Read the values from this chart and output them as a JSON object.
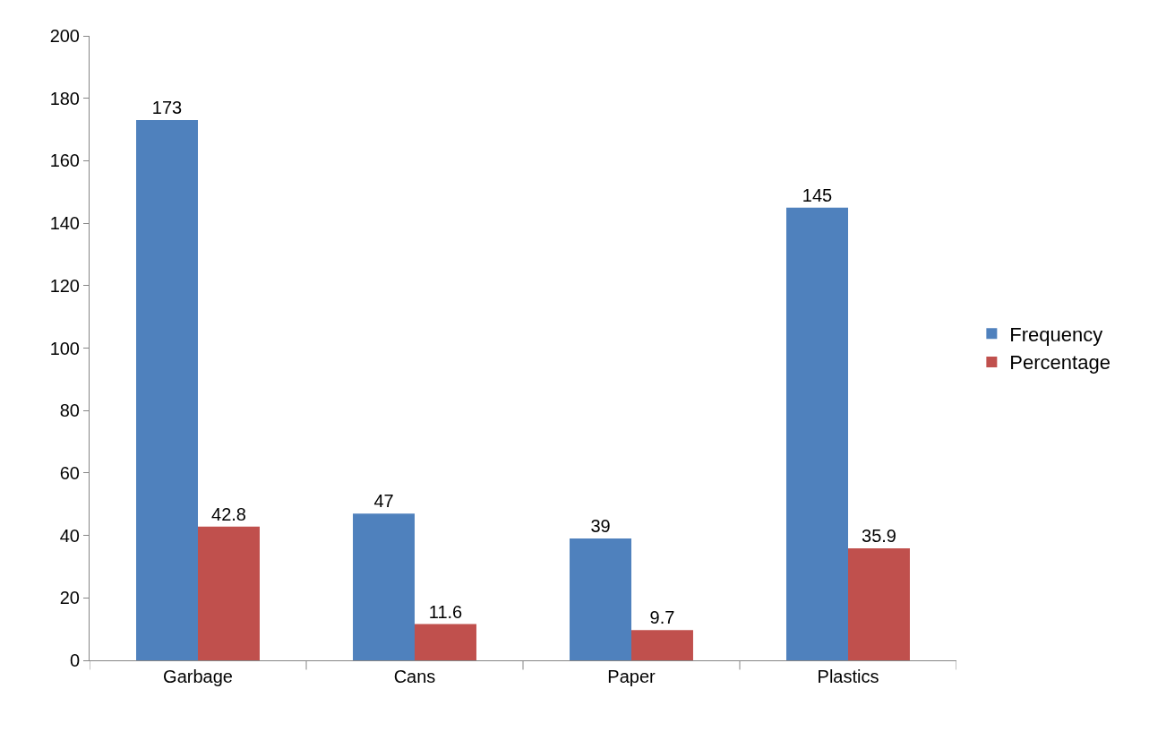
{
  "chart_data": {
    "type": "bar",
    "categories": [
      "Garbage",
      "Cans",
      "Paper",
      "Plastics"
    ],
    "series": [
      {
        "name": "Frequency",
        "color": "#4f81bd",
        "values": [
          173,
          47,
          39,
          145
        ]
      },
      {
        "name": "Percentage",
        "color": "#c0504d",
        "values": [
          42.8,
          11.6,
          9.7,
          35.9
        ]
      }
    ],
    "ylim": [
      0,
      200
    ],
    "yticks": [
      0,
      20,
      40,
      60,
      80,
      100,
      120,
      140,
      160,
      180,
      200
    ],
    "grid": false,
    "legend": "right",
    "data_labels": true
  }
}
